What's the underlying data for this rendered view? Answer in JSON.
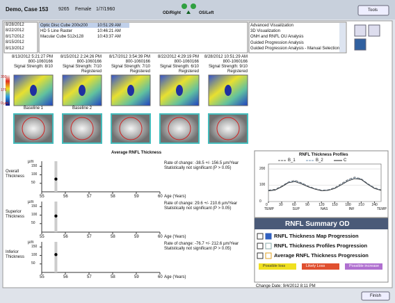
{
  "header": {
    "patient": "Demo, Case 153",
    "id": "9265",
    "sex": "Female",
    "dob": "1/7/1960",
    "od": "OD/Right",
    "os": "OS/Left",
    "tools": "Tools"
  },
  "exam_dates": [
    "8/28/2012",
    "8/22/2012",
    "8/17/2012",
    "8/15/2012",
    "8/13/2012"
  ],
  "scans": [
    {
      "name": "Optic Disc Cube 200x200",
      "time": "10:51:29 AM"
    },
    {
      "name": "HD 5 Line Raster",
      "time": "10:46:21 AM"
    },
    {
      "name": "Macular Cube 512x128",
      "time": "10:43:37 AM"
    }
  ],
  "analyses": [
    "Advanced Visualization",
    "3D Visualization",
    "ONH and RNFL OU Analysis",
    "Guided Progression Analysis",
    "Guided Progression Analysis - Manual Selection"
  ],
  "exams": [
    {
      "datetime": "8/13/2012 5:21:27 PM",
      "id": "800-1060166",
      "signal": "Signal Strength: 8/10"
    },
    {
      "datetime": "8/15/2012 2:24:26 PM",
      "id": "800-1060166",
      "signal": "Signal Strength: 7/10",
      "status": "Registered"
    },
    {
      "datetime": "8/17/2012 3:54:39 PM",
      "id": "800-1060166",
      "signal": "Signal Strength: 7/10",
      "status": "Registered"
    },
    {
      "datetime": "8/22/2012 4:29:19 PM",
      "id": "800-1060166",
      "signal": "Signal Strength: 6/10",
      "status": "Registered"
    },
    {
      "datetime": "8/28/2012 10:51:29 AM",
      "id": "800-1060166",
      "signal": "Signal Strength: 9/10",
      "status": "Registered"
    }
  ],
  "color_scale": [
    "350",
    "175",
    "0 µm"
  ],
  "baseline_labels": [
    "Baseline 1",
    "Baseline 2"
  ],
  "trend": {
    "title": "Average RNFL Thickness",
    "y_unit": "µm",
    "x_label": "Age (Years)",
    "xlim": [
      55,
      60
    ],
    "xticks": [
      55,
      56,
      57,
      58,
      59,
      60
    ],
    "ylim": [
      0,
      180
    ],
    "yticks": [
      50,
      100,
      150
    ],
    "plots": [
      {
        "label": "Overall Thickness",
        "rate": "Rate of change: -38.5 +/- 156.5 µm/Year",
        "significance": "Statistically not significant (P > 0.05)",
        "x": [
          55.6
        ],
        "y": [
          75
        ]
      },
      {
        "label": "Superior Thickness",
        "rate": "Rate of change: 29.6 +/- 210.6 µm/Year",
        "significance": "Statistically not significant (P > 0.05)",
        "x": [
          55.6
        ],
        "y": [
          95
        ]
      },
      {
        "label": "Inferior Thickness",
        "rate": "Rate of change: -76.7 +/- 212.6 µm/Year",
        "significance": "Statistically not significant (P > 0.05)",
        "x": [
          55.6
        ],
        "y": [
          105
        ]
      }
    ]
  },
  "profile": {
    "title": "RNFL Thickness Profiles",
    "xlim": [
      0,
      255
    ],
    "xticks": [
      0,
      30,
      60,
      90,
      120,
      150,
      180,
      210,
      240
    ],
    "ylim": [
      0,
      230
    ],
    "yticks": [
      0,
      100,
      200
    ],
    "regions": [
      "TEMP",
      "SUP",
      "NAS",
      "INF",
      "TEMP"
    ],
    "x": [
      0,
      15,
      30,
      45,
      60,
      75,
      90,
      105,
      120,
      135,
      150,
      165,
      180,
      195,
      210,
      225,
      240,
      255
    ],
    "series": [
      {
        "name": "B_1",
        "color": "#555555",
        "values": [
          70,
          75,
          95,
          120,
          130,
          115,
          95,
          80,
          70,
          72,
          85,
          110,
          135,
          150,
          140,
          110,
          85,
          72
        ]
      },
      {
        "name": "B_2",
        "color": "#7090b0",
        "values": [
          68,
          72,
          92,
          118,
          126,
          112,
          92,
          78,
          68,
          70,
          82,
          105,
          130,
          145,
          138,
          108,
          82,
          70
        ]
      },
      {
        "name": "C",
        "color": "#222222",
        "values": [
          65,
          70,
          90,
          115,
          122,
          108,
          90,
          76,
          66,
          68,
          80,
          102,
          126,
          140,
          135,
          105,
          80,
          68
        ]
      }
    ]
  },
  "summary": {
    "title": "RNFL Summary OD",
    "items": [
      "RNFL Thickness Map Progression",
      "RNFL Thickness Profiles Progression",
      "Average RNFL Thickness Progression"
    ],
    "legend": [
      {
        "label": "Possible loss",
        "color": "#f0e020"
      },
      {
        "label": "Likely Loss",
        "color": "#e05030"
      },
      {
        "label": "Possible increase",
        "color": "#b070d0"
      }
    ],
    "change_date": "Change Date: 9/4/2012 8:11 PM"
  },
  "footer": {
    "finish": "Finish"
  }
}
